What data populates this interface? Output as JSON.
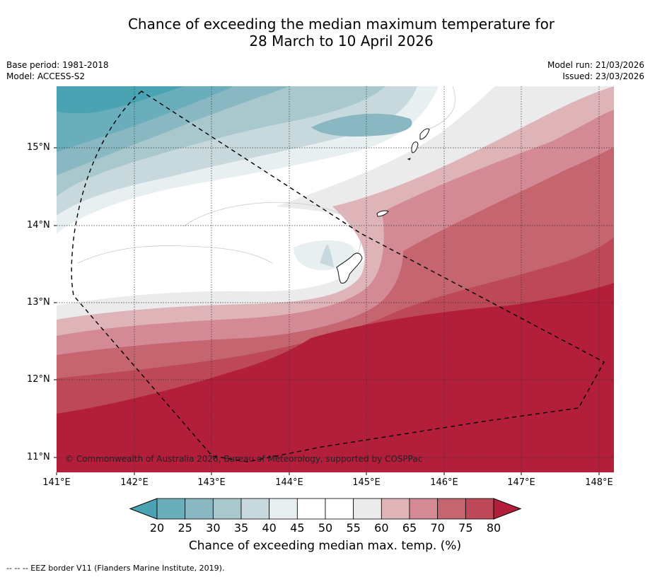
{
  "title": {
    "line1": "Chance of exceeding the median maximum temperature for",
    "line2": "28 March to 10 April 2026"
  },
  "meta": {
    "base_period": "Base period: 1981-2018",
    "model": "Model: ACCESS-S2",
    "model_run": "Model run: 21/03/2026",
    "issued": "Issued: 23/03/2026"
  },
  "axes": {
    "lat_labels": [
      "15°N",
      "14°N",
      "13°N",
      "12°N",
      "11°N"
    ],
    "lon_labels": [
      "141°E",
      "142°E",
      "143°E",
      "144°E",
      "145°E",
      "146°E",
      "147°E",
      "148°E"
    ]
  },
  "copyright": "© Commonwealth of Australia 2026, Bureau of Meteorology, supported by COSPPac",
  "colorbar": {
    "ticks": [
      "20",
      "25",
      "30",
      "35",
      "40",
      "45",
      "50",
      "55",
      "60",
      "65",
      "70",
      "75",
      "80"
    ],
    "colors": [
      "#4aa3b3",
      "#6aaebc",
      "#89b8c3",
      "#a8c8cd",
      "#c8d9de",
      "#e8eff1",
      "#ffffff",
      "#ffffff",
      "#ecebec",
      "#dfb4b9",
      "#d38a94",
      "#c56570",
      "#bc4858",
      "#b31e3a"
    ],
    "label": "Chance of exceeding median max. temp. (%)"
  },
  "footnote": "--  --  -- EEZ border V11 (Flanders Marine Institute, 2019)."
}
